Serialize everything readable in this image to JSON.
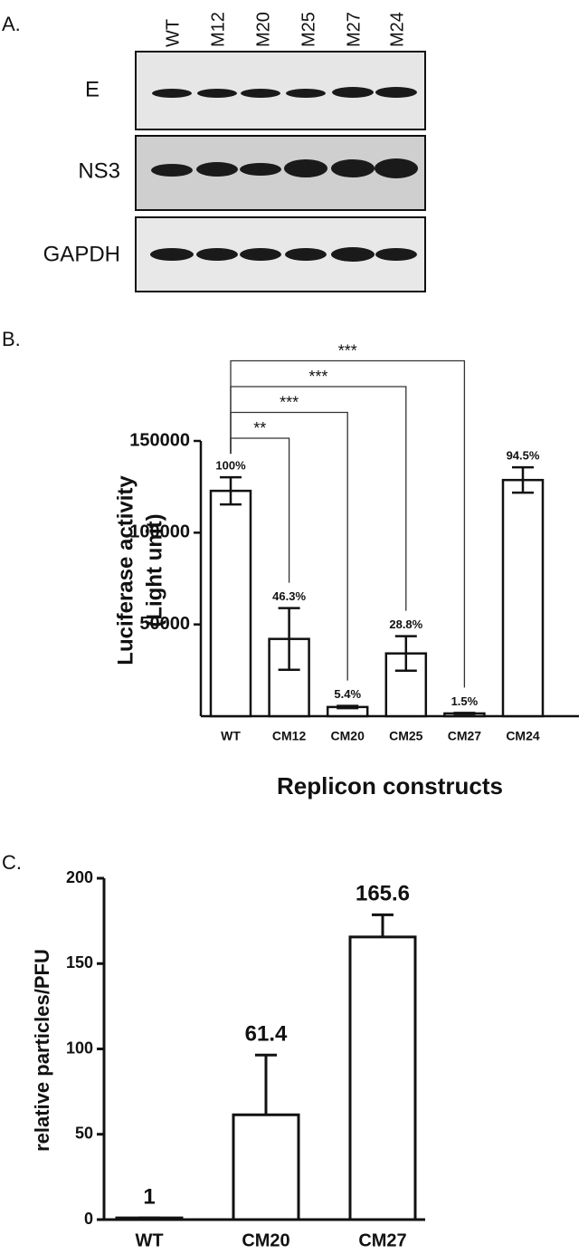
{
  "blot": {
    "panel_label": "A.",
    "lanes": [
      "WT",
      "M12",
      "M20",
      "M25",
      "M27",
      "M24"
    ],
    "rows": [
      "E",
      "NS3",
      "GAPDH"
    ]
  },
  "chart_data": [
    {
      "type": "bar",
      "panel_label": "B.",
      "ylabel": [
        "Luciferase activity",
        "(Light unit)"
      ],
      "xlabel": "Replicon constructs",
      "categories": [
        "WT",
        "CM12",
        "CM20",
        "CM25",
        "CM27",
        "CM24"
      ],
      "values": [
        122800,
        42100,
        5000,
        34200,
        1500,
        128700
      ],
      "errors": [
        7400,
        16800,
        600,
        9400,
        300,
        6900
      ],
      "annotations": [
        "100%",
        "46.3%",
        "5.4%",
        "28.8%",
        "1.5%",
        "94.5%"
      ],
      "significance": [
        {
          "label": "**",
          "groups": [
            "WT",
            "CM12"
          ]
        },
        {
          "label": "***",
          "groups": [
            "WT",
            "CM20"
          ]
        },
        {
          "label": "***",
          "groups": [
            "WT",
            "CM25"
          ]
        },
        {
          "label": "***",
          "groups": [
            "WT",
            "CM27"
          ]
        }
      ],
      "color": "#ffffff",
      "ylim": [
        0,
        150000
      ],
      "yticks": [
        50000,
        100000,
        150000
      ],
      "grid": false
    },
    {
      "type": "bar",
      "panel_label": "C.",
      "ylabel": "relative particles/PFU",
      "categories": [
        "WT",
        "CM20",
        "CM27"
      ],
      "values": [
        1,
        61.4,
        165.6
      ],
      "errors": [
        0,
        35,
        13
      ],
      "data_labels": true,
      "color": "#ffffff",
      "ylim": [
        0,
        200
      ],
      "yticks": [
        0,
        50,
        100,
        150,
        200
      ],
      "grid": false
    }
  ]
}
